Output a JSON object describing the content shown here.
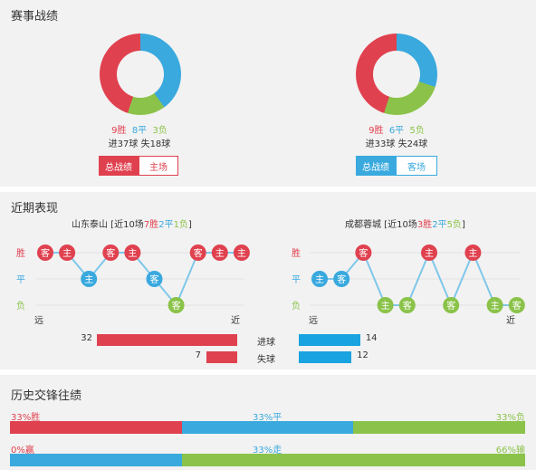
{
  "section1": {
    "title": "赛事战绩",
    "left": {
      "wins": 9,
      "draws": 8,
      "losses": 3,
      "wins_text": "9胜",
      "draws_text": "8平",
      "losses_text": "3负",
      "goals_text": "进37球 失18球",
      "tab_active": "总战绩",
      "tab_other": "主场",
      "accent": "#e0414f"
    },
    "right": {
      "wins": 9,
      "draws": 6,
      "losses": 5,
      "wins_text": "9胜",
      "draws_text": "6平",
      "losses_text": "5负",
      "goals_text": "进33球 失24球",
      "tab_active": "总战绩",
      "tab_other": "客场",
      "accent": "#39a9de"
    }
  },
  "section2": {
    "title": "近期表现",
    "left_team": {
      "name": "山东泰山",
      "bracket_open": " [近10场",
      "w": "7胜",
      "d": "2平",
      "l": "1负",
      "bracket_close": "]"
    },
    "right_team": {
      "name": "成都蓉城",
      "bracket_open": " [近10场",
      "w": "3胜",
      "d": "2平",
      "l": "5负",
      "bracket_close": "]"
    },
    "row_labels": [
      "胜",
      "平",
      "负"
    ],
    "far_label": "远",
    "near_label": "近",
    "left_form": [
      {
        "r": "W",
        "v": "客"
      },
      {
        "r": "W",
        "v": "主"
      },
      {
        "r": "D",
        "v": "主"
      },
      {
        "r": "W",
        "v": "客"
      },
      {
        "r": "W",
        "v": "主"
      },
      {
        "r": "D",
        "v": "客"
      },
      {
        "r": "L",
        "v": "客"
      },
      {
        "r": "W",
        "v": "客"
      },
      {
        "r": "W",
        "v": "主"
      },
      {
        "r": "W",
        "v": "主"
      }
    ],
    "right_form": [
      {
        "r": "D",
        "v": "主"
      },
      {
        "r": "D",
        "v": "客"
      },
      {
        "r": "W",
        "v": "客"
      },
      {
        "r": "L",
        "v": "主"
      },
      {
        "r": "L",
        "v": "客"
      },
      {
        "r": "W",
        "v": "主"
      },
      {
        "r": "L",
        "v": "客"
      },
      {
        "r": "W",
        "v": "主"
      },
      {
        "r": "L",
        "v": "主"
      },
      {
        "r": "L",
        "v": "客"
      }
    ],
    "goals_for_label": "进球",
    "goals_against_label": "失球",
    "left_goals_for": 32,
    "left_goals_against": 7,
    "right_goals_for": 14,
    "right_goals_against": 12
  },
  "section3": {
    "title": "历史交锋往绩",
    "row1": {
      "left": "33%胜",
      "mid": "33%平",
      "right": "33%负",
      "p1": 33,
      "p2": 33,
      "p3": 33
    },
    "row2": {
      "left": "0%赢",
      "mid": "33%走",
      "right": "66%输",
      "p1": 0,
      "p2": 33,
      "p3": 66
    }
  },
  "colors": {
    "win": "#e0414f",
    "draw": "#39a9de",
    "loss": "#8bc34a",
    "bar_blue": "#19a3e0"
  }
}
